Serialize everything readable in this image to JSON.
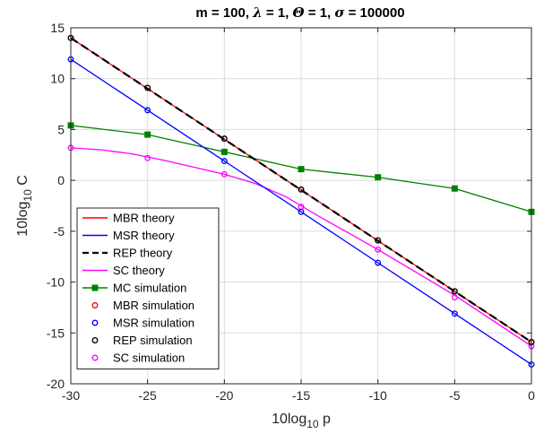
{
  "chart_data": {
    "type": "line",
    "title": "m = 100, λ = 1, Θ = 1, σ = 100000",
    "title_parts": [
      "m = 100, ",
      "λ",
      " = 1, ",
      "Θ",
      " = 1, ",
      "σ",
      " = 100000"
    ],
    "xlabel": {
      "base": "10log",
      "sub": "10",
      "var": " p"
    },
    "ylabel": {
      "base": "10log",
      "sub": "10",
      "var": " C"
    },
    "xlim": [
      -30,
      0
    ],
    "ylim": [
      -20,
      15
    ],
    "xticks": [
      "-30",
      "-25",
      "-20",
      "-15",
      "-10",
      "-5",
      "0"
    ],
    "yticks": [
      "15",
      "10",
      "5",
      "0",
      "-5",
      "-10",
      "-15",
      "-20"
    ],
    "grid": true,
    "legend_position": "bottom-left",
    "series": [
      {
        "name": "MBR theory",
        "kind": "line",
        "color": "#ff0000",
        "dash": "solid",
        "points": [
          [
            -30,
            14.0
          ],
          [
            0,
            -15.9
          ]
        ]
      },
      {
        "name": "MSR theory",
        "kind": "line",
        "color": "#0000ff",
        "dash": "solid",
        "points": [
          [
            -30,
            11.9
          ],
          [
            0,
            -18.1
          ]
        ]
      },
      {
        "name": "REP theory",
        "kind": "line",
        "color": "#000000",
        "dash": "dashed",
        "points": [
          [
            -30,
            14.0
          ],
          [
            0,
            -15.9
          ]
        ]
      },
      {
        "name": "SC theory",
        "kind": "line",
        "color": "#ff00ff",
        "dash": "solid",
        "points": [
          [
            -30,
            3.2
          ],
          [
            -28,
            3.0
          ],
          [
            -26,
            2.6
          ],
          [
            -24,
            2.0
          ],
          [
            -22,
            1.3
          ],
          [
            -20,
            0.6
          ],
          [
            -18,
            -0.3
          ],
          [
            -16,
            -1.6
          ],
          [
            -15,
            -2.5
          ],
          [
            -14,
            -3.4
          ],
          [
            -12,
            -5.1
          ],
          [
            -10,
            -6.8
          ],
          [
            -8,
            -8.6
          ],
          [
            -6,
            -10.4
          ],
          [
            -5,
            -11.3
          ],
          [
            -4,
            -12.3
          ],
          [
            -2,
            -14.3
          ],
          [
            0,
            -16.3
          ]
        ]
      },
      {
        "name": "MC simulation",
        "kind": "line-square",
        "color": "#008000",
        "dash": "solid",
        "points": [
          [
            -30,
            5.4
          ],
          [
            -25,
            4.5
          ],
          [
            -20,
            2.8
          ],
          [
            -15,
            1.1
          ],
          [
            -10,
            0.3
          ],
          [
            -5,
            -0.8
          ],
          [
            0,
            -3.1
          ]
        ]
      },
      {
        "name": "MBR simulation",
        "kind": "marker-circle",
        "color": "#ff0000",
        "points": [
          [
            -30,
            14.0
          ],
          [
            -25,
            9.1
          ],
          [
            -20,
            4.1
          ],
          [
            -15,
            -0.9
          ],
          [
            -10,
            -5.9
          ],
          [
            -5,
            -10.9
          ],
          [
            0,
            -15.9
          ]
        ]
      },
      {
        "name": "MSR simulation",
        "kind": "marker-circle",
        "color": "#0000ff",
        "points": [
          [
            -30,
            11.9
          ],
          [
            -25,
            6.9
          ],
          [
            -20,
            1.9
          ],
          [
            -15,
            -3.1
          ],
          [
            -10,
            -8.1
          ],
          [
            -5,
            -13.1
          ],
          [
            0,
            -18.1
          ]
        ]
      },
      {
        "name": "REP simulation",
        "kind": "marker-circle",
        "color": "#000000",
        "points": [
          [
            -30,
            14.0
          ],
          [
            -25,
            9.1
          ],
          [
            -20,
            4.1
          ],
          [
            -15,
            -0.9
          ],
          [
            -10,
            -5.9
          ],
          [
            -5,
            -10.9
          ],
          [
            0,
            -15.9
          ]
        ]
      },
      {
        "name": "SC simulation",
        "kind": "marker-circle",
        "color": "#ff00ff",
        "points": [
          [
            -30,
            3.2
          ],
          [
            -25,
            2.2
          ],
          [
            -20,
            0.6
          ],
          [
            -15,
            -2.6
          ],
          [
            -10,
            -6.8
          ],
          [
            -5,
            -11.5
          ],
          [
            0,
            -16.3
          ]
        ]
      }
    ]
  }
}
